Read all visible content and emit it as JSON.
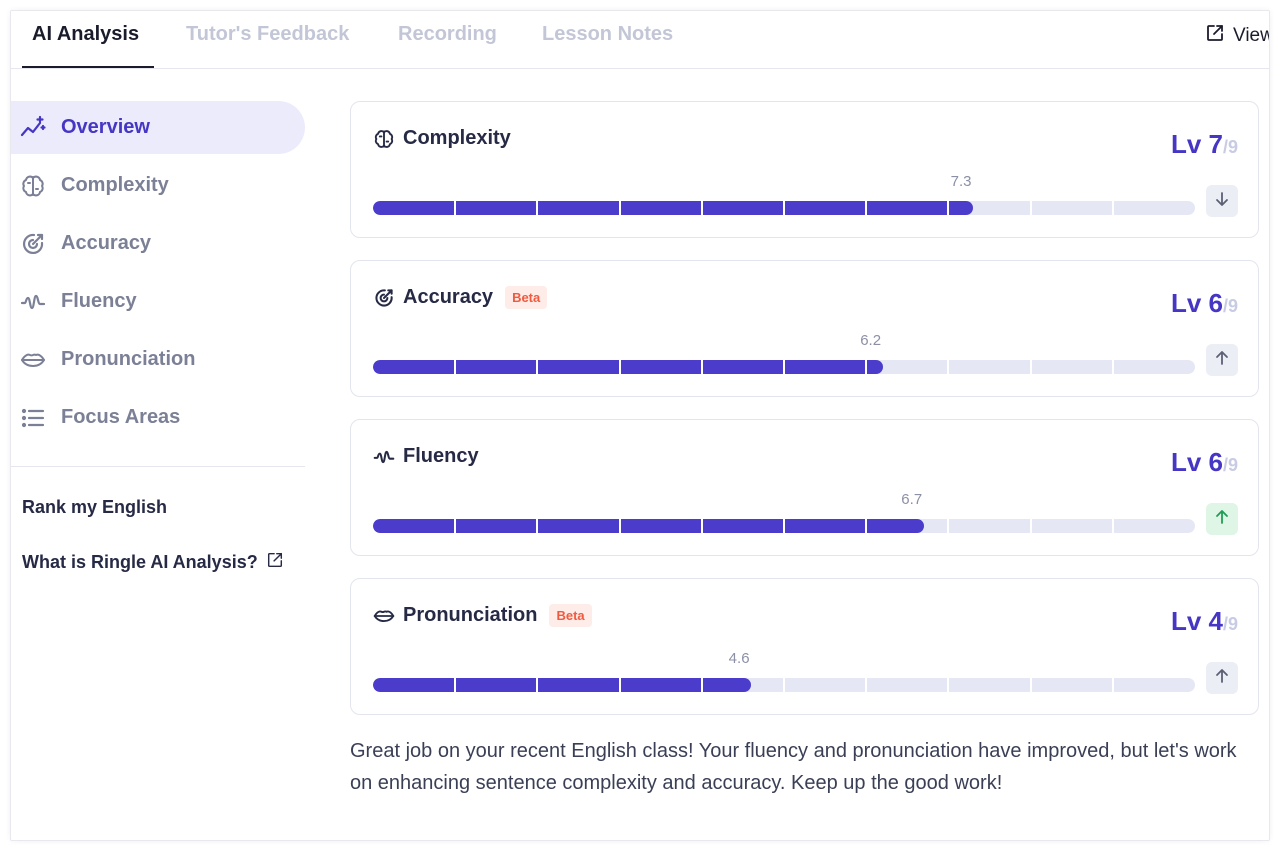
{
  "tabs": [
    {
      "label": "AI Analysis",
      "active": true
    },
    {
      "label": "Tutor's Feedback",
      "active": false
    },
    {
      "label": "Recording",
      "active": false
    },
    {
      "label": "Lesson Notes",
      "active": false
    }
  ],
  "view_button": {
    "label": "View",
    "icon": "external-link-icon"
  },
  "sidebar": {
    "items": [
      {
        "label": "Overview",
        "icon": "chart-sparkle-icon",
        "active": true
      },
      {
        "label": "Complexity",
        "icon": "brain-icon",
        "active": false
      },
      {
        "label": "Accuracy",
        "icon": "target-icon",
        "active": false
      },
      {
        "label": "Fluency",
        "icon": "wave-icon",
        "active": false
      },
      {
        "label": "Pronunciation",
        "icon": "lips-icon",
        "active": false
      },
      {
        "label": "Focus Areas",
        "icon": "list-icon",
        "active": false
      }
    ],
    "links": [
      {
        "label": "Rank my English"
      },
      {
        "label": "What is Ringle AI Analysis?",
        "icon": "external-link-icon"
      }
    ]
  },
  "metrics": [
    {
      "name": "Complexity",
      "icon": "brain-icon",
      "beta": "",
      "level_prefix": "Lv",
      "level": "7",
      "level_max": "/9",
      "score": 7.3,
      "score_label": "7.3",
      "trend": "down"
    },
    {
      "name": "Accuracy",
      "icon": "target-icon",
      "beta": "Beta",
      "level_prefix": "Lv",
      "level": "6",
      "level_max": "/9",
      "score": 6.2,
      "score_label": "6.2",
      "trend": "up"
    },
    {
      "name": "Fluency",
      "icon": "wave-icon",
      "beta": "",
      "level_prefix": "Lv",
      "level": "6",
      "level_max": "/9",
      "score": 6.7,
      "score_label": "6.7",
      "trend": "up-green"
    },
    {
      "name": "Pronunciation",
      "icon": "lips-icon",
      "beta": "Beta",
      "level_prefix": "Lv",
      "level": "4",
      "level_max": "/9",
      "score": 4.6,
      "score_label": "4.6",
      "trend": "up"
    }
  ],
  "scale_max": 10,
  "colors": {
    "accent": "#4b3ccc",
    "beta": "#f05a3f",
    "trend_green": "#1f9d55"
  },
  "summary": "Great job on your recent English class! Your fluency and pronunciation have improved, but let's work on enhancing sentence complexity and accuracy. Keep up the good work!"
}
